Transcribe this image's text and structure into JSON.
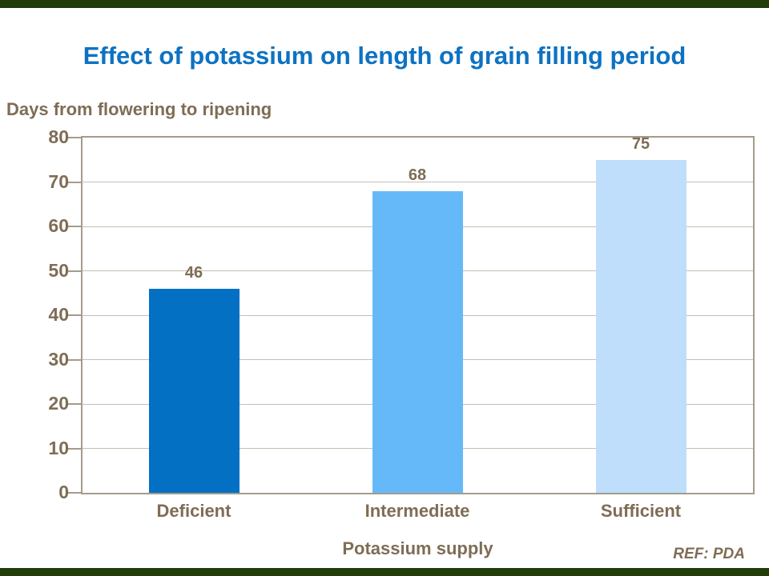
{
  "theme": {
    "background": "#ffffff",
    "edge_bar_color": "#223c0a",
    "title_color": "#0d72c2",
    "axis_text_color": "#7e6d55",
    "plot_border_color": "#a59b8b",
    "gridline_color": "#c6bfb2"
  },
  "header": {
    "title": "Effect of potassium on length of grain filling period"
  },
  "footer": {
    "ref_label": "REF: PDA"
  },
  "chart_data": {
    "type": "bar",
    "title": "Effect of potassium on length of grain filling period",
    "ylabel": "Days from flowering to ripening",
    "xlabel": "Potassium supply",
    "categories": [
      "Deficient",
      "Intermediate",
      "Sufficient"
    ],
    "values": [
      46,
      68,
      75
    ],
    "data_labels": [
      "46",
      "68",
      "75"
    ],
    "bar_colors": [
      "#0470c4",
      "#66b9f9",
      "#bedefb"
    ],
    "ylim": [
      0,
      80
    ],
    "yticks": [
      80,
      70,
      60,
      50,
      40,
      30,
      20,
      10,
      0
    ],
    "grid": true,
    "legend": "none"
  }
}
